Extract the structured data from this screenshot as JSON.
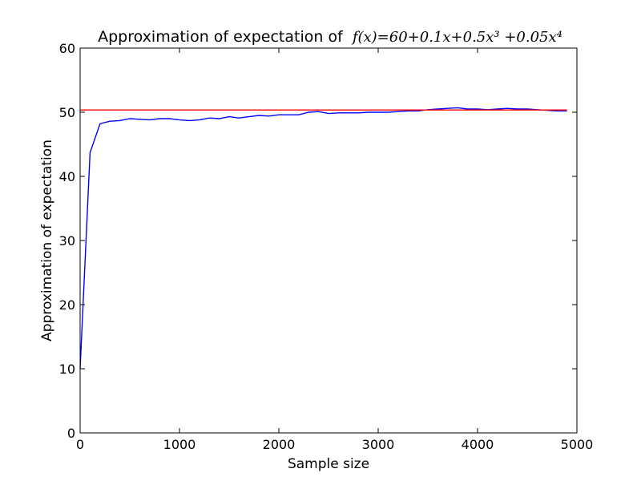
{
  "chart_data": {
    "type": "line",
    "title": "Approximation of expectation of",
    "title_formula": "f(x)=60+0.1x+0.5x³ +0.05x⁴",
    "xlabel": "Sample size",
    "ylabel": "Approximation of expectation",
    "xlim": [
      0,
      5000
    ],
    "ylim": [
      0,
      60
    ],
    "xticks": [
      0,
      1000,
      2000,
      3000,
      4000,
      5000
    ],
    "yticks": [
      0,
      10,
      20,
      30,
      40,
      50,
      60
    ],
    "grid": false,
    "series": [
      {
        "color": "#0000ff",
        "x": [
          0,
          100,
          200,
          300,
          400,
          500,
          600,
          700,
          800,
          900,
          1000,
          1100,
          1200,
          1300,
          1400,
          1500,
          1600,
          1700,
          1800,
          1900,
          2000,
          2100,
          2200,
          2300,
          2400,
          2500,
          2600,
          2700,
          2800,
          2900,
          3000,
          3100,
          3200,
          3300,
          3400,
          3500,
          3600,
          3700,
          3800,
          3900,
          4000,
          4100,
          4200,
          4300,
          4400,
          4500,
          4600,
          4700,
          4800,
          4900
        ],
        "y": [
          10.0,
          43.7,
          48.2,
          48.6,
          48.7,
          49.0,
          48.9,
          48.8,
          49.0,
          49.0,
          48.8,
          48.7,
          48.8,
          49.1,
          49.0,
          49.3,
          49.1,
          49.3,
          49.5,
          49.4,
          49.6,
          49.6,
          49.6,
          50.0,
          50.1,
          49.8,
          49.9,
          49.9,
          49.9,
          50.0,
          50.0,
          50.0,
          50.1,
          50.2,
          50.2,
          50.4,
          50.5,
          50.6,
          50.7,
          50.5,
          50.5,
          50.4,
          50.5,
          50.6,
          50.5,
          50.5,
          50.4,
          50.3,
          50.2,
          50.2
        ]
      },
      {
        "color": "#ff0000",
        "x": [
          0,
          4900
        ],
        "y": [
          50.35,
          50.35
        ]
      }
    ]
  }
}
